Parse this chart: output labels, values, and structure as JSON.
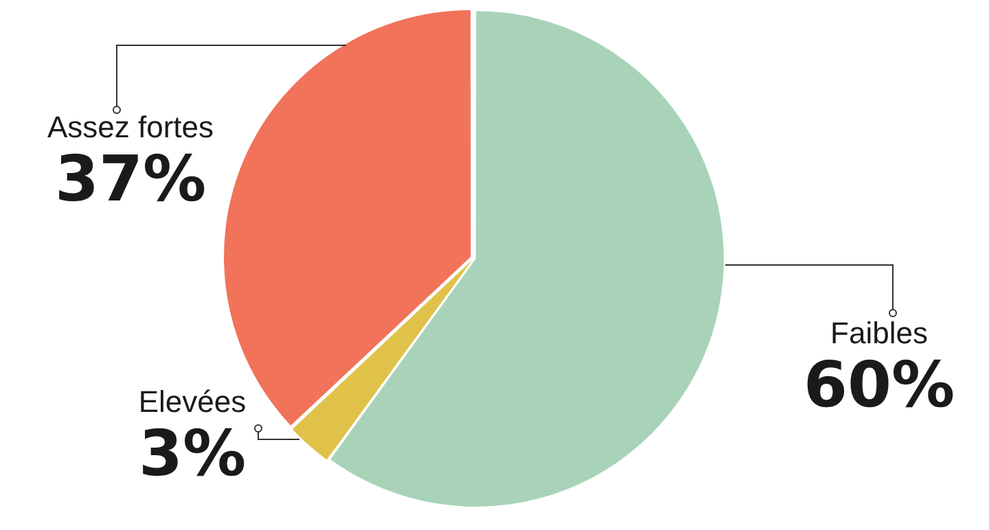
{
  "chart_data": {
    "type": "pie",
    "categories": [
      "Faibles",
      "Elevées",
      "Assez fortes"
    ],
    "values": [
      60,
      3,
      37
    ],
    "value_labels": [
      "60%",
      "3%",
      "37%"
    ],
    "colors": [
      "#a8d3b8",
      "#e0c24a",
      "#f0735a"
    ],
    "legend": false
  }
}
